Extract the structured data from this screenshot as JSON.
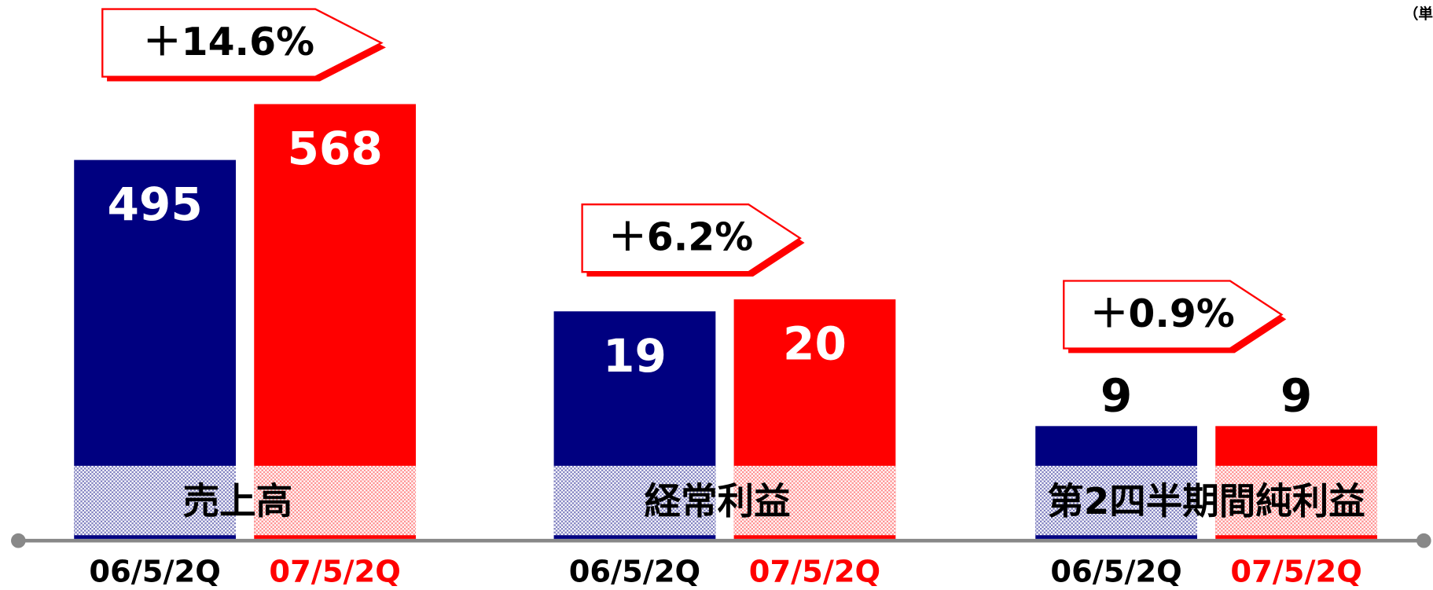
{
  "note": "（単",
  "chart_data": [
    {
      "type": "bar",
      "title": "売上高",
      "annotation": "＋14.6%",
      "categories": [
        "06/5/2Q",
        "07/5/2Q"
      ],
      "values": [
        495,
        568
      ],
      "colors": [
        "#000080",
        "#ff0000"
      ],
      "ylim": [
        0,
        704
      ]
    },
    {
      "type": "bar",
      "title": "経常利益",
      "annotation": "＋6.2%",
      "categories": [
        "06/5/2Q",
        "07/5/2Q"
      ],
      "values": [
        19,
        20
      ],
      "colors": [
        "#000080",
        "#ff0000"
      ],
      "ylim": [
        0,
        45
      ]
    },
    {
      "type": "bar",
      "title": "第2四半期間純利益",
      "annotation": "＋0.9%",
      "categories": [
        "06/5/2Q",
        "07/5/2Q"
      ],
      "values": [
        9,
        9
      ],
      "colors": [
        "#000080",
        "#ff0000"
      ],
      "ylim": [
        0,
        43
      ]
    }
  ]
}
